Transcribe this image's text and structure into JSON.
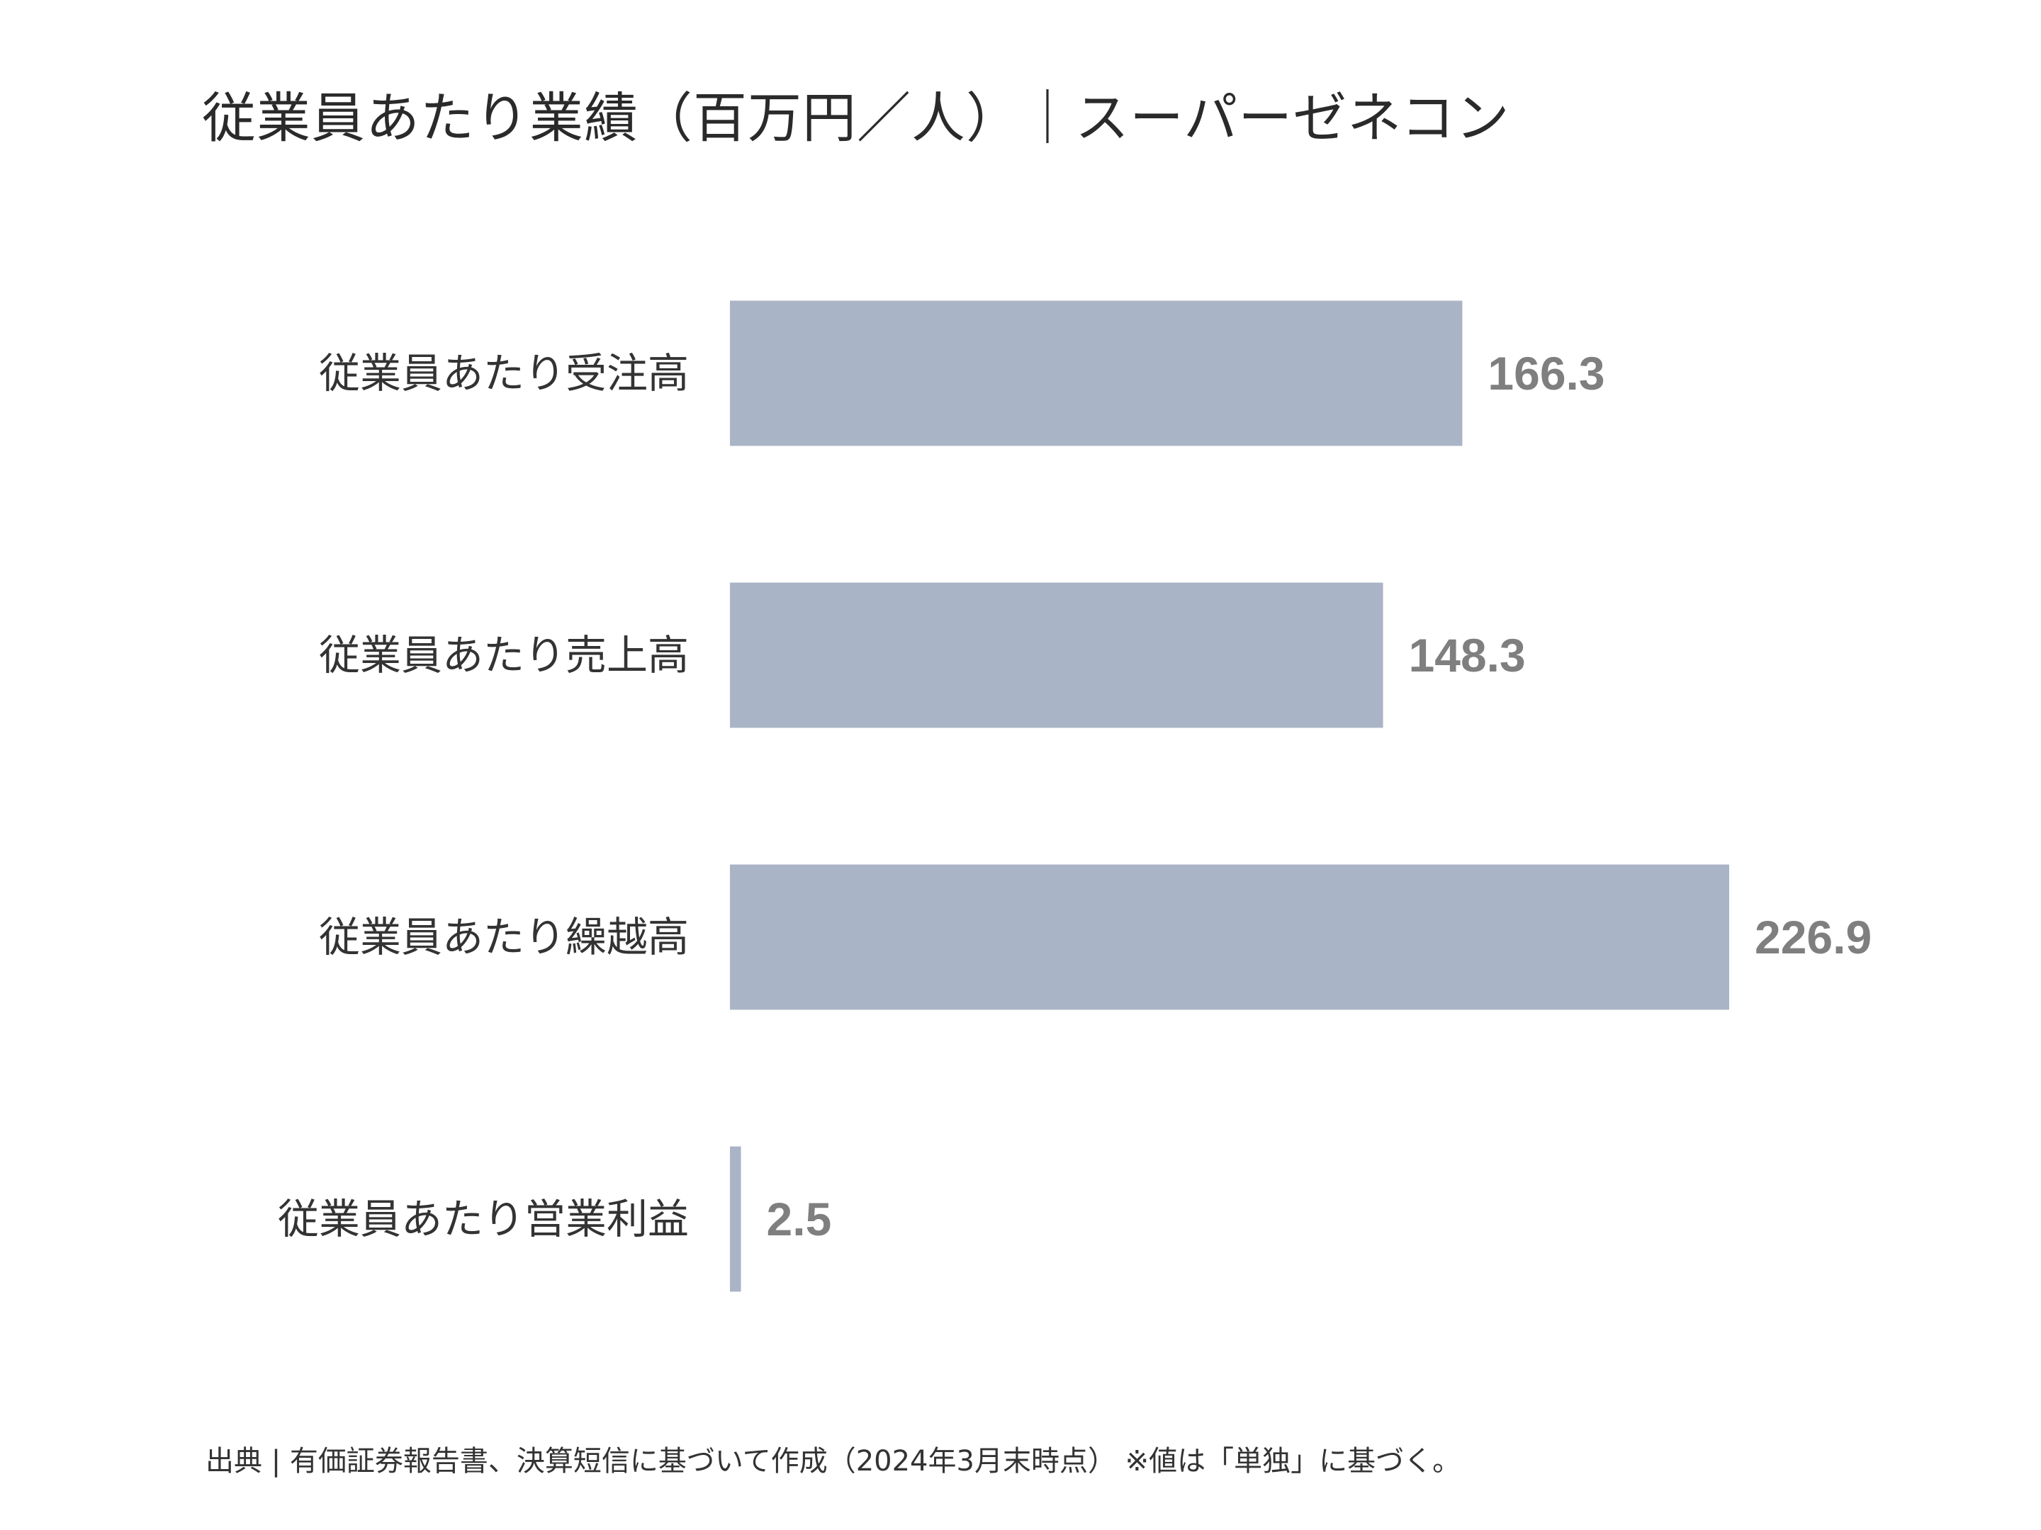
{
  "chart_data": {
    "type": "bar",
    "orientation": "horizontal",
    "title": "従業員あたり業績（百万円／人）｜スーパーゼネコン",
    "categories": [
      "従業員あたり受注高",
      "従業員あたり売上高",
      "従業員あたり繰越高",
      "従業員あたり営業利益"
    ],
    "values": [
      166.3,
      148.3,
      226.9,
      2.5
    ],
    "value_labels": [
      "166.3",
      "148.3",
      "226.9",
      "2.5"
    ],
    "xlim": [
      0,
      226.9
    ],
    "bar_color": "#a9b4c6",
    "value_label_color": "#7f7f7f",
    "grid": false,
    "legend": "none"
  },
  "footer": {
    "source": "出典 | 有価証券報告書、決算短信に基づいて作成（2024年3月末時点） ※値は「単独」に基づく。"
  }
}
